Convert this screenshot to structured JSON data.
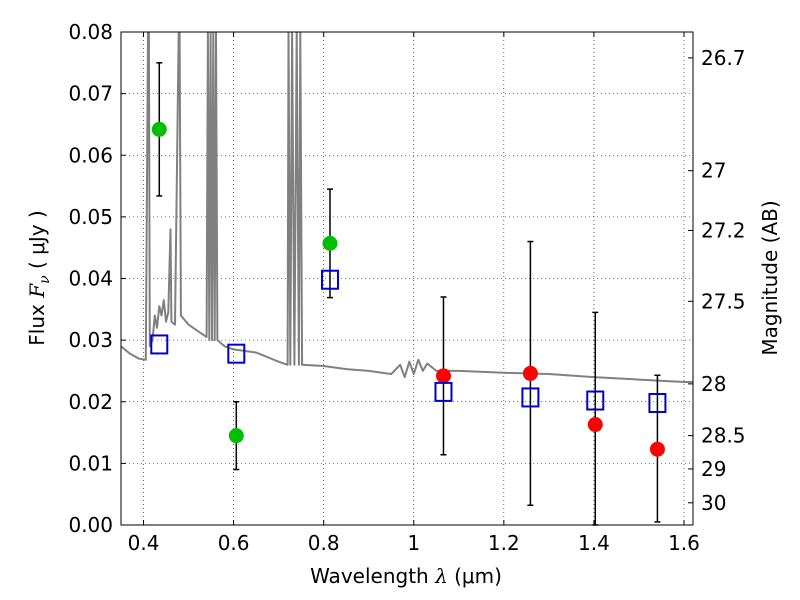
{
  "chart_data": {
    "type": "scatter",
    "xlabel_text": "Wavelength",
    "xlabel_symbol": "λ",
    "xlabel_unit": "(μm)",
    "ylabel_text": "Flux",
    "ylabel_symbol": "F",
    "ylabel_subscript": "ν",
    "ylabel_unit": "( μJy )",
    "y2label": "Magnitude (AB)",
    "xlim": [
      0.35,
      1.62
    ],
    "ylim": [
      0.0,
      0.08
    ],
    "x_ticks": [
      0.4,
      0.6,
      0.8,
      1.0,
      1.2,
      1.4,
      1.6
    ],
    "x_tick_labels": [
      "0.4",
      "0.6",
      "0.8",
      "1",
      "1.2",
      "1.4",
      "1.6"
    ],
    "y_ticks": [
      0.0,
      0.01,
      0.02,
      0.03,
      0.04,
      0.05,
      0.06,
      0.07,
      0.08
    ],
    "y_tick_labels": [
      "0.00",
      "0.01",
      "0.02",
      "0.03",
      "0.04",
      "0.05",
      "0.06",
      "0.07",
      "0.08"
    ],
    "y2_ticks": [
      {
        "label": "26.7",
        "flux": 0.0758
      },
      {
        "label": "27",
        "flux": 0.0575
      },
      {
        "label": "27.2",
        "flux": 0.0478
      },
      {
        "label": "27.5",
        "flux": 0.0363
      },
      {
        "label": "28",
        "flux": 0.0229
      },
      {
        "label": "28.5",
        "flux": 0.0145
      },
      {
        "label": "29",
        "flux": 0.0091
      },
      {
        "label": "30",
        "flux": 0.0036
      }
    ],
    "grid": true,
    "series": [
      {
        "marker": "circle",
        "color": "#00bf00",
        "points": [
          {
            "x": 0.435,
            "y": 0.0642,
            "yerr_low": 0.0534,
            "yerr_high": 0.075
          },
          {
            "x": 0.606,
            "y": 0.0145,
            "yerr_low": 0.009,
            "yerr_high": 0.02
          },
          {
            "x": 0.814,
            "y": 0.0457,
            "yerr_low": 0.0369,
            "yerr_high": 0.0545
          }
        ]
      },
      {
        "marker": "circle",
        "color": "#ff0000",
        "points": [
          {
            "x": 1.066,
            "y": 0.0242,
            "yerr_low": 0.0114,
            "yerr_high": 0.037
          },
          {
            "x": 1.259,
            "y": 0.0246,
            "yerr_low": 0.0032,
            "yerr_high": 0.046
          },
          {
            "x": 1.403,
            "y": 0.0163,
            "yerr_low": 0.0,
            "yerr_high": 0.0345
          },
          {
            "x": 1.541,
            "y": 0.0123,
            "yerr_low": 0.0005,
            "yerr_high": 0.0243
          }
        ]
      },
      {
        "marker": "open-square",
        "color": "#0000cc",
        "points": [
          {
            "x": 0.435,
            "y": 0.0293
          },
          {
            "x": 0.606,
            "y": 0.0278
          },
          {
            "x": 0.814,
            "y": 0.0398
          },
          {
            "x": 1.066,
            "y": 0.0216
          },
          {
            "x": 1.259,
            "y": 0.0207
          },
          {
            "x": 1.403,
            "y": 0.0202
          },
          {
            "x": 1.541,
            "y": 0.0198
          }
        ]
      },
      {
        "marker": "line",
        "color": "#808080",
        "points": [
          [
            0.35,
            0.029
          ],
          [
            0.37,
            0.0278
          ],
          [
            0.39,
            0.027
          ],
          [
            0.405,
            0.0268
          ],
          [
            0.41,
            0.08
          ],
          [
            0.412,
            0.08
          ],
          [
            0.414,
            0.029
          ],
          [
            0.42,
            0.03
          ],
          [
            0.425,
            0.034
          ],
          [
            0.43,
            0.032
          ],
          [
            0.435,
            0.0355
          ],
          [
            0.44,
            0.034
          ],
          [
            0.445,
            0.0365
          ],
          [
            0.45,
            0.033
          ],
          [
            0.455,
            0.0345
          ],
          [
            0.46,
            0.048
          ],
          [
            0.462,
            0.033
          ],
          [
            0.47,
            0.0325
          ],
          [
            0.478,
            0.08
          ],
          [
            0.48,
            0.08
          ],
          [
            0.483,
            0.034
          ],
          [
            0.5,
            0.0325
          ],
          [
            0.52,
            0.0315
          ],
          [
            0.54,
            0.0305
          ],
          [
            0.543,
            0.08
          ],
          [
            0.546,
            0.03
          ],
          [
            0.549,
            0.08
          ],
          [
            0.552,
            0.03
          ],
          [
            0.555,
            0.08
          ],
          [
            0.558,
            0.03
          ],
          [
            0.561,
            0.08
          ],
          [
            0.564,
            0.03
          ],
          [
            0.58,
            0.029
          ],
          [
            0.6,
            0.0285
          ],
          [
            0.65,
            0.028
          ],
          [
            0.7,
            0.0265
          ],
          [
            0.72,
            0.026
          ],
          [
            0.722,
            0.08
          ],
          [
            0.726,
            0.026
          ],
          [
            0.73,
            0.08
          ],
          [
            0.735,
            0.026
          ],
          [
            0.74,
            0.08
          ],
          [
            0.745,
            0.026
          ],
          [
            0.748,
            0.08
          ],
          [
            0.752,
            0.026
          ],
          [
            0.8,
            0.0258
          ],
          [
            0.85,
            0.0253
          ],
          [
            0.9,
            0.025
          ],
          [
            0.95,
            0.0245
          ],
          [
            0.97,
            0.026
          ],
          [
            0.98,
            0.024
          ],
          [
            0.99,
            0.0265
          ],
          [
            1.0,
            0.0245
          ],
          [
            1.01,
            0.0268
          ],
          [
            1.02,
            0.025
          ],
          [
            1.03,
            0.0262
          ],
          [
            1.05,
            0.025
          ],
          [
            1.1,
            0.025
          ],
          [
            1.2,
            0.0247
          ],
          [
            1.3,
            0.0245
          ],
          [
            1.4,
            0.024
          ],
          [
            1.5,
            0.0236
          ],
          [
            1.6,
            0.0232
          ],
          [
            1.62,
            0.0232
          ]
        ]
      }
    ]
  }
}
